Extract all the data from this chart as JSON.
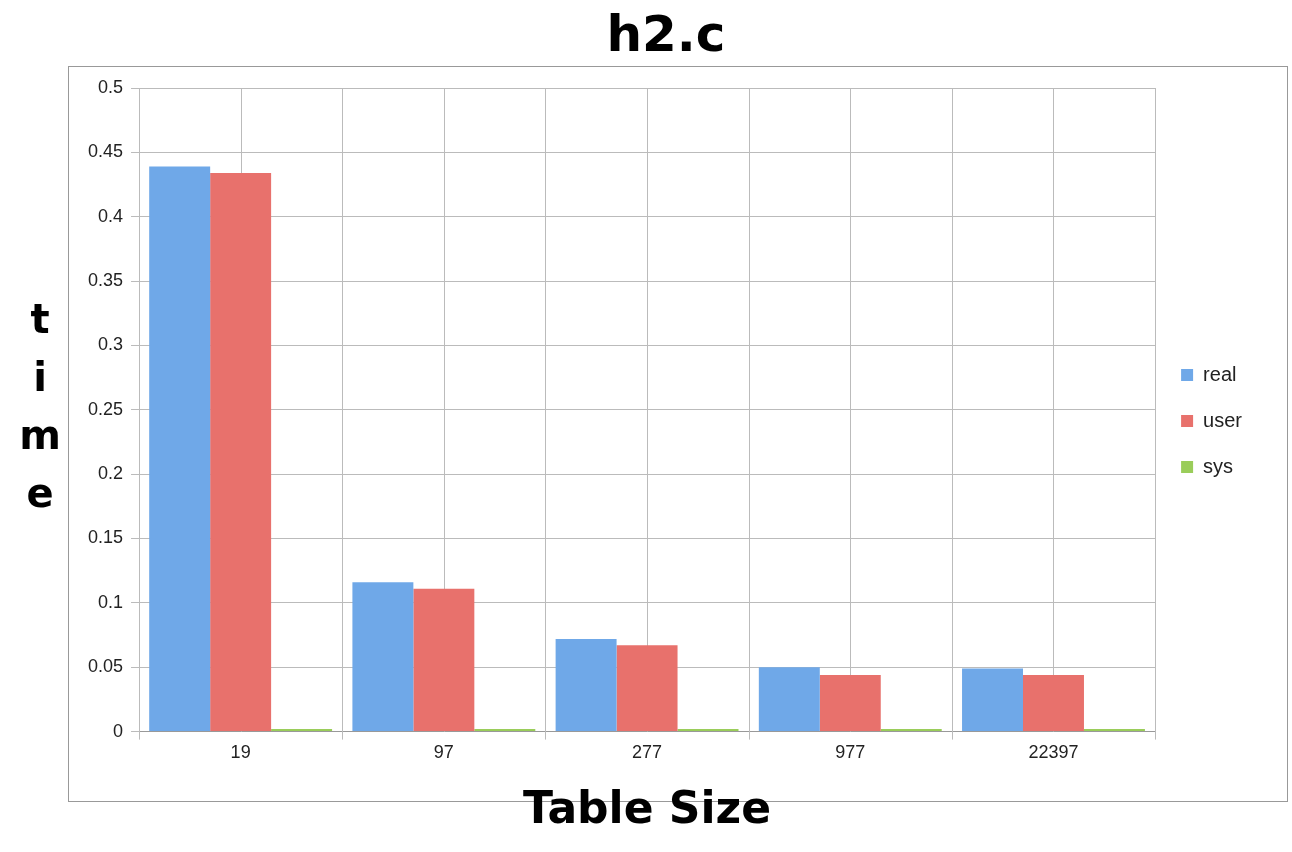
{
  "chart_data": {
    "type": "bar",
    "title": "h2.c",
    "xlabel": "Table Size",
    "ylabel": "time",
    "categories": [
      "19",
      "97",
      "277",
      "977",
      "22397"
    ],
    "series": [
      {
        "name": "real",
        "color": "#6fa8e8",
        "values": [
          0.439,
          0.116,
          0.072,
          0.05,
          0.049
        ]
      },
      {
        "name": "user",
        "color": "#e8716c",
        "values": [
          0.434,
          0.111,
          0.067,
          0.044,
          0.044
        ]
      },
      {
        "name": "sys",
        "color": "#9acd5a",
        "values": [
          0.002,
          0.002,
          0.002,
          0.002,
          0.002
        ]
      }
    ],
    "ylim": [
      0,
      0.5
    ],
    "yticks": [
      0,
      0.05,
      0.1,
      0.15,
      0.2,
      0.25,
      0.3,
      0.35,
      0.4,
      0.45,
      0.5
    ],
    "grid": true,
    "legend": "right"
  }
}
